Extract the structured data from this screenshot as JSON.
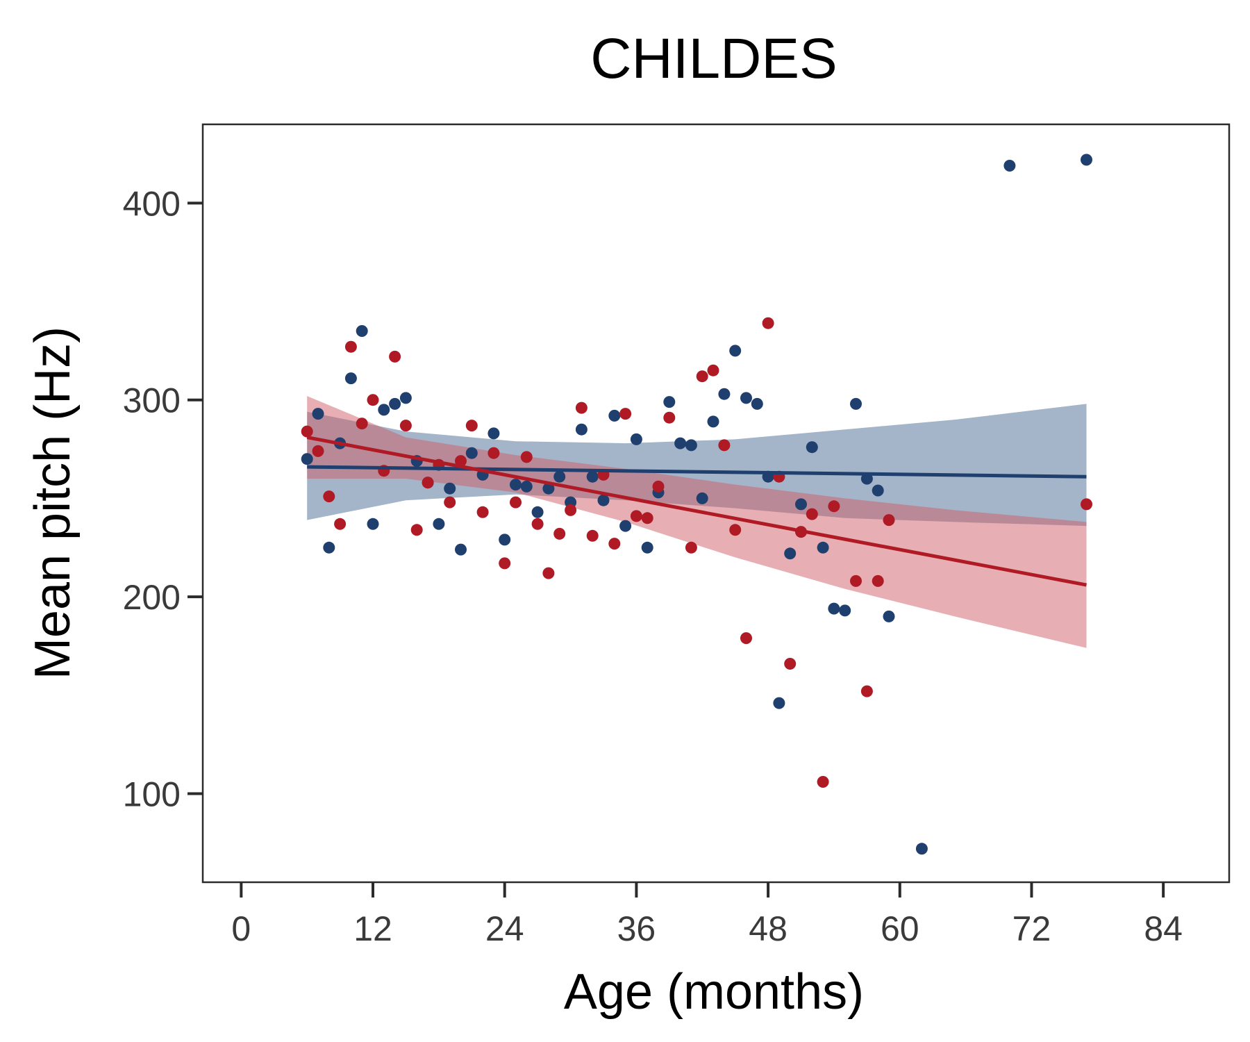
{
  "chart_data": {
    "type": "scatter",
    "title": "CHILDES",
    "xlabel": "Age (months)",
    "ylabel": "Mean pitch (Hz)",
    "xlim": [
      -3.5,
      90
    ],
    "ylim": [
      55,
      440
    ],
    "xticks": [
      0,
      12,
      24,
      36,
      48,
      60,
      72,
      84
    ],
    "yticks": [
      100,
      200,
      300,
      400
    ],
    "grid": false,
    "legend": "none",
    "series": [
      {
        "color": "#1f3f6e",
        "band_color": "#4a6a93",
        "points": [
          [
            6,
            270
          ],
          [
            7,
            293
          ],
          [
            8,
            225
          ],
          [
            9,
            278
          ],
          [
            10,
            311
          ],
          [
            11,
            335
          ],
          [
            12,
            237
          ],
          [
            13,
            295
          ],
          [
            14,
            298
          ],
          [
            15,
            301
          ],
          [
            16,
            269
          ],
          [
            17,
            258
          ],
          [
            18,
            237
          ],
          [
            19,
            255
          ],
          [
            20,
            224
          ],
          [
            21,
            273
          ],
          [
            22,
            262
          ],
          [
            23,
            283
          ],
          [
            24,
            229
          ],
          [
            25,
            257
          ],
          [
            26,
            256
          ],
          [
            27,
            243
          ],
          [
            28,
            255
          ],
          [
            29,
            261
          ],
          [
            30,
            248
          ],
          [
            31,
            285
          ],
          [
            32,
            261
          ],
          [
            33,
            249
          ],
          [
            34,
            292
          ],
          [
            35,
            236
          ],
          [
            36,
            280
          ],
          [
            37,
            225
          ],
          [
            38,
            253
          ],
          [
            39,
            299
          ],
          [
            40,
            278
          ],
          [
            41,
            277
          ],
          [
            42,
            250
          ],
          [
            43,
            289
          ],
          [
            44,
            303
          ],
          [
            45,
            325
          ],
          [
            46,
            301
          ],
          [
            47,
            298
          ],
          [
            48,
            261
          ],
          [
            49,
            146
          ],
          [
            50,
            222
          ],
          [
            51,
            247
          ],
          [
            52,
            276
          ],
          [
            53,
            225
          ],
          [
            54,
            194
          ],
          [
            55,
            193
          ],
          [
            56,
            298
          ],
          [
            57,
            260
          ],
          [
            58,
            254
          ],
          [
            59,
            190
          ],
          [
            62,
            72
          ],
          [
            70,
            419
          ],
          [
            77,
            422
          ]
        ],
        "fit": {
          "x": [
            6,
            77
          ],
          "y": [
            266,
            261
          ]
        },
        "band": {
          "x": [
            6,
            15,
            25,
            35,
            45,
            55,
            65,
            77
          ],
          "lower": [
            239,
            249,
            252,
            249,
            245,
            240,
            238,
            236
          ],
          "upper": [
            294,
            284,
            279,
            278,
            280,
            285,
            290,
            298
          ]
        }
      },
      {
        "color": "#b01a25",
        "band_color": "#cf5e67",
        "points": [
          [
            6,
            284
          ],
          [
            7,
            274
          ],
          [
            8,
            251
          ],
          [
            9,
            237
          ],
          [
            10,
            327
          ],
          [
            11,
            288
          ],
          [
            12,
            300
          ],
          [
            13,
            264
          ],
          [
            14,
            322
          ],
          [
            15,
            287
          ],
          [
            16,
            234
          ],
          [
            17,
            258
          ],
          [
            18,
            267
          ],
          [
            19,
            248
          ],
          [
            20,
            269
          ],
          [
            21,
            287
          ],
          [
            22,
            243
          ],
          [
            23,
            273
          ],
          [
            24,
            217
          ],
          [
            25,
            248
          ],
          [
            26,
            271
          ],
          [
            27,
            237
          ],
          [
            28,
            212
          ],
          [
            29,
            232
          ],
          [
            30,
            244
          ],
          [
            31,
            296
          ],
          [
            32,
            231
          ],
          [
            33,
            262
          ],
          [
            34,
            227
          ],
          [
            35,
            293
          ],
          [
            36,
            241
          ],
          [
            37,
            240
          ],
          [
            38,
            256
          ],
          [
            39,
            291
          ],
          [
            41,
            225
          ],
          [
            42,
            312
          ],
          [
            43,
            315
          ],
          [
            44,
            277
          ],
          [
            45,
            234
          ],
          [
            46,
            179
          ],
          [
            48,
            339
          ],
          [
            49,
            261
          ],
          [
            50,
            166
          ],
          [
            51,
            233
          ],
          [
            52,
            242
          ],
          [
            53,
            106
          ],
          [
            54,
            246
          ],
          [
            56,
            208
          ],
          [
            57,
            152
          ],
          [
            58,
            208
          ],
          [
            59,
            239
          ],
          [
            77,
            247
          ]
        ],
        "fit": {
          "x": [
            6,
            77
          ],
          "y": [
            281,
            206
          ]
        },
        "band": {
          "x": [
            6,
            15,
            25,
            35,
            45,
            55,
            65,
            77
          ],
          "lower": [
            260,
            260,
            253,
            238,
            220,
            204,
            190,
            174
          ],
          "upper": [
            302,
            281,
            272,
            265,
            257,
            250,
            244,
            238
          ]
        }
      }
    ]
  }
}
